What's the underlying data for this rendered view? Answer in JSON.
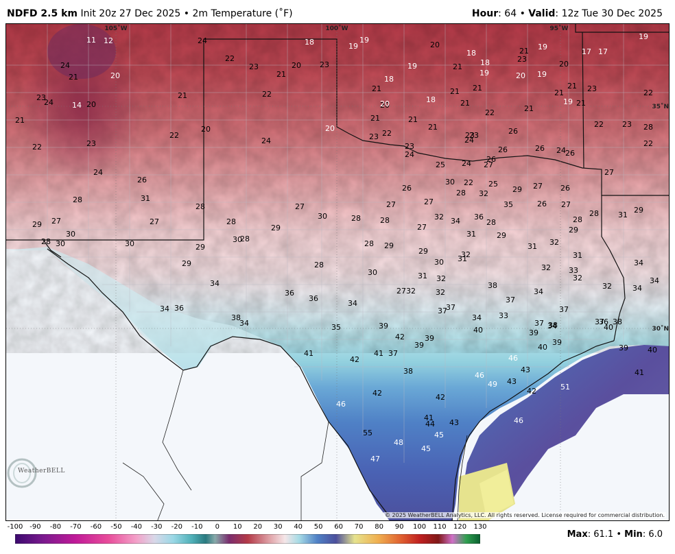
{
  "header": {
    "model": "NDFD 2.5 km",
    "init": "Init 20z 27 Dec 2025",
    "sep": "•",
    "field": "2m Temperature (˚F)",
    "hour_label": "Hour",
    "hour_value": ": 64",
    "valid_label": "Valid",
    "valid_value": ": 12z Tue 30 Dec 2025"
  },
  "map": {
    "longitude_labels": [
      "105˚W",
      "100˚W",
      "95˚W"
    ],
    "latitude_labels": [
      "35˚N",
      "30˚N"
    ],
    "copyright": "© 2025 WeatherBELL Analytics, LLC. All rights reserved. License required for commercial distribution.",
    "station_values": [
      {
        "v": "11",
        "c": "w"
      },
      {
        "v": "12",
        "c": "w"
      },
      {
        "v": "24",
        "c": "b"
      },
      {
        "v": "18",
        "c": "w"
      },
      {
        "v": "19",
        "c": "w"
      },
      {
        "v": "19",
        "c": "w"
      },
      {
        "v": "20",
        "c": "b"
      },
      {
        "v": "18",
        "c": "w"
      },
      {
        "v": "18",
        "c": "w"
      },
      {
        "v": "21",
        "c": "b"
      },
      {
        "v": "19",
        "c": "w"
      },
      {
        "v": "17",
        "c": "w"
      },
      {
        "v": "17",
        "c": "w"
      },
      {
        "v": "19",
        "c": "w"
      },
      {
        "v": "24",
        "c": "b"
      },
      {
        "v": "21",
        "c": "b"
      },
      {
        "v": "20",
        "c": "w"
      },
      {
        "v": "22",
        "c": "b"
      },
      {
        "v": "23",
        "c": "b"
      },
      {
        "v": "21",
        "c": "b"
      },
      {
        "v": "20",
        "c": "b"
      },
      {
        "v": "23",
        "c": "b"
      },
      {
        "v": "19",
        "c": "w"
      },
      {
        "v": "21",
        "c": "b"
      },
      {
        "v": "19",
        "c": "w"
      },
      {
        "v": "23",
        "c": "b"
      },
      {
        "v": "19",
        "c": "w"
      },
      {
        "v": "20",
        "c": "w"
      },
      {
        "v": "20",
        "c": "b"
      },
      {
        "v": "19",
        "c": "w"
      },
      {
        "v": "23",
        "c": "b"
      },
      {
        "v": "24",
        "c": "b"
      },
      {
        "v": "14",
        "c": "w"
      },
      {
        "v": "20",
        "c": "b"
      },
      {
        "v": "21",
        "c": "b"
      },
      {
        "v": "22",
        "c": "b"
      },
      {
        "v": "18",
        "c": "w"
      },
      {
        "v": "21",
        "c": "b"
      },
      {
        "v": "21",
        "c": "b"
      },
      {
        "v": "21",
        "c": "b"
      },
      {
        "v": "21",
        "c": "b"
      },
      {
        "v": "21",
        "c": "b"
      },
      {
        "v": "23",
        "c": "b"
      },
      {
        "v": "22",
        "c": "b"
      },
      {
        "v": "21",
        "c": "b"
      },
      {
        "v": "20",
        "c": "b"
      },
      {
        "v": "20",
        "c": "w"
      },
      {
        "v": "18",
        "c": "w"
      },
      {
        "v": "21",
        "c": "b"
      },
      {
        "v": "22",
        "c": "b"
      },
      {
        "v": "21",
        "c": "b"
      },
      {
        "v": "21",
        "c": "b"
      },
      {
        "v": "22",
        "c": "b"
      },
      {
        "v": "23",
        "c": "b"
      },
      {
        "v": "28",
        "c": "b"
      },
      {
        "v": "22",
        "c": "b"
      },
      {
        "v": "23",
        "c": "b"
      },
      {
        "v": "22",
        "c": "b"
      },
      {
        "v": "20",
        "c": "b"
      },
      {
        "v": "24",
        "c": "b"
      },
      {
        "v": "20",
        "c": "w"
      },
      {
        "v": "21",
        "c": "b"
      },
      {
        "v": "22",
        "c": "b"
      },
      {
        "v": "21",
        "c": "b"
      },
      {
        "v": "21",
        "c": "b"
      },
      {
        "v": "23",
        "c": "b"
      },
      {
        "v": "22",
        "c": "b"
      },
      {
        "v": "23",
        "c": "b"
      },
      {
        "v": "23",
        "c": "b"
      },
      {
        "v": "24",
        "c": "b"
      },
      {
        "v": "26",
        "c": "b"
      },
      {
        "v": "24",
        "c": "b"
      },
      {
        "v": "23",
        "c": "b"
      },
      {
        "v": "25",
        "c": "b"
      },
      {
        "v": "24",
        "c": "b"
      },
      {
        "v": "26",
        "c": "b"
      },
      {
        "v": "26",
        "c": "b"
      },
      {
        "v": "24",
        "c": "b"
      },
      {
        "v": "24",
        "c": "b"
      },
      {
        "v": "26",
        "c": "b"
      },
      {
        "v": "26",
        "c": "b"
      },
      {
        "v": "27",
        "c": "b"
      },
      {
        "v": "26",
        "c": "b"
      },
      {
        "v": "27",
        "c": "b"
      },
      {
        "v": "26",
        "c": "b"
      },
      {
        "v": "30",
        "c": "b"
      },
      {
        "v": "22",
        "c": "b"
      },
      {
        "v": "25",
        "c": "b"
      },
      {
        "v": "29",
        "c": "b"
      },
      {
        "v": "27",
        "c": "b"
      },
      {
        "v": "26",
        "c": "b"
      },
      {
        "v": "28",
        "c": "b"
      },
      {
        "v": "31",
        "c": "b"
      },
      {
        "v": "28",
        "c": "b"
      },
      {
        "v": "27",
        "c": "b"
      },
      {
        "v": "27",
        "c": "b"
      },
      {
        "v": "27",
        "c": "b"
      },
      {
        "v": "28",
        "c": "b"
      },
      {
        "v": "32",
        "c": "b"
      },
      {
        "v": "35",
        "c": "b"
      },
      {
        "v": "26",
        "c": "b"
      },
      {
        "v": "27",
        "c": "b"
      },
      {
        "v": "28",
        "c": "b"
      },
      {
        "v": "31",
        "c": "b"
      },
      {
        "v": "29",
        "c": "b"
      },
      {
        "v": "29",
        "c": "b"
      },
      {
        "v": "27",
        "c": "b"
      },
      {
        "v": "27",
        "c": "b"
      },
      {
        "v": "28",
        "c": "b"
      },
      {
        "v": "29",
        "c": "b"
      },
      {
        "v": "30",
        "c": "b"
      },
      {
        "v": "28",
        "c": "b"
      },
      {
        "v": "28",
        "c": "b"
      },
      {
        "v": "27",
        "c": "b"
      },
      {
        "v": "32",
        "c": "b"
      },
      {
        "v": "34",
        "c": "b"
      },
      {
        "v": "36",
        "c": "b"
      },
      {
        "v": "28",
        "c": "b"
      },
      {
        "v": "28",
        "c": "b"
      },
      {
        "v": "29",
        "c": "b"
      },
      {
        "v": "30",
        "c": "b"
      },
      {
        "v": "28",
        "c": "b"
      },
      {
        "v": "30",
        "c": "b"
      },
      {
        "v": "30",
        "c": "b"
      },
      {
        "v": "29",
        "c": "b"
      },
      {
        "v": "30",
        "c": "b"
      },
      {
        "v": "28",
        "c": "b"
      },
      {
        "v": "28",
        "c": "b"
      },
      {
        "v": "29",
        "c": "b"
      },
      {
        "v": "31",
        "c": "b"
      },
      {
        "v": "29",
        "c": "b"
      },
      {
        "v": "31",
        "c": "b"
      },
      {
        "v": "32",
        "c": "b"
      },
      {
        "v": "31",
        "c": "b"
      },
      {
        "v": "29",
        "c": "b"
      },
      {
        "v": "28",
        "c": "b"
      },
      {
        "v": "29",
        "c": "b"
      },
      {
        "v": "30",
        "c": "b"
      },
      {
        "v": "31",
        "c": "b"
      },
      {
        "v": "32",
        "c": "b"
      },
      {
        "v": "32",
        "c": "b"
      },
      {
        "v": "33",
        "c": "b"
      },
      {
        "v": "34",
        "c": "b"
      },
      {
        "v": "34",
        "c": "b"
      },
      {
        "v": "34",
        "c": "b"
      },
      {
        "v": "30",
        "c": "b"
      },
      {
        "v": "31",
        "c": "b"
      },
      {
        "v": "32",
        "c": "b"
      },
      {
        "v": "32",
        "c": "b"
      },
      {
        "v": "32",
        "c": "b"
      },
      {
        "v": "32",
        "c": "b"
      },
      {
        "v": "34",
        "c": "b"
      },
      {
        "v": "36",
        "c": "b"
      },
      {
        "v": "36",
        "c": "b"
      },
      {
        "v": "34",
        "c": "b"
      },
      {
        "v": "27",
        "c": "b"
      },
      {
        "v": "32",
        "c": "b"
      },
      {
        "v": "38",
        "c": "b"
      },
      {
        "v": "37",
        "c": "b"
      },
      {
        "v": "34",
        "c": "b"
      },
      {
        "v": "34",
        "c": "b"
      },
      {
        "v": "36",
        "c": "b"
      },
      {
        "v": "37",
        "c": "b"
      },
      {
        "v": "37",
        "c": "b"
      },
      {
        "v": "37",
        "c": "b"
      },
      {
        "v": "36",
        "c": "b"
      },
      {
        "v": "38",
        "c": "b"
      },
      {
        "v": "34",
        "c": "b"
      },
      {
        "v": "34",
        "c": "b"
      },
      {
        "v": "33",
        "c": "b"
      },
      {
        "v": "37",
        "c": "b"
      },
      {
        "v": "34",
        "c": "b"
      },
      {
        "v": "37",
        "c": "b"
      },
      {
        "v": "40",
        "c": "b"
      },
      {
        "v": "38",
        "c": "b"
      },
      {
        "v": "35",
        "c": "b"
      },
      {
        "v": "39",
        "c": "b"
      },
      {
        "v": "40",
        "c": "b"
      },
      {
        "v": "39",
        "c": "b"
      },
      {
        "v": "38",
        "c": "b"
      },
      {
        "v": "42",
        "c": "b"
      },
      {
        "v": "39",
        "c": "b"
      },
      {
        "v": "39",
        "c": "b"
      },
      {
        "v": "40",
        "c": "b"
      },
      {
        "v": "39",
        "c": "b"
      },
      {
        "v": "41",
        "c": "b"
      },
      {
        "v": "42",
        "c": "b"
      },
      {
        "v": "41",
        "c": "b"
      },
      {
        "v": "37",
        "c": "b"
      },
      {
        "v": "46",
        "c": "w"
      },
      {
        "v": "39",
        "c": "b"
      },
      {
        "v": "40",
        "c": "b"
      },
      {
        "v": "38",
        "c": "b"
      },
      {
        "v": "43",
        "c": "b"
      },
      {
        "v": "41",
        "c": "b"
      },
      {
        "v": "46",
        "c": "w"
      },
      {
        "v": "49",
        "c": "w"
      },
      {
        "v": "43",
        "c": "b"
      },
      {
        "v": "42",
        "c": "b"
      },
      {
        "v": "42",
        "c": "b"
      },
      {
        "v": "42",
        "c": "b"
      },
      {
        "v": "51",
        "c": "w"
      },
      {
        "v": "46",
        "c": "w"
      },
      {
        "v": "41",
        "c": "b"
      },
      {
        "v": "44",
        "c": "b"
      },
      {
        "v": "43",
        "c": "b"
      },
      {
        "v": "46",
        "c": "w"
      },
      {
        "v": "55",
        "c": "b"
      },
      {
        "v": "45",
        "c": "w"
      },
      {
        "v": "48",
        "c": "w"
      },
      {
        "v": "45",
        "c": "w"
      },
      {
        "v": "47",
        "c": "w"
      }
    ]
  },
  "logo": {
    "text": "WeatherBELL"
  },
  "colorbar": {
    "ticks": [
      "-100",
      "-90",
      "-80",
      "-70",
      "-60",
      "-50",
      "-40",
      "-30",
      "-20",
      "-10",
      "0",
      "10",
      "20",
      "30",
      "40",
      "50",
      "60",
      "70",
      "80",
      "90",
      "100",
      "110",
      "120",
      "130"
    ],
    "min": -100,
    "max": 130
  },
  "stats": {
    "max_label": "Max",
    "max_value": ": 61.1",
    "sep": "•",
    "min_label": "Min",
    "min_value": ": 6.0"
  }
}
